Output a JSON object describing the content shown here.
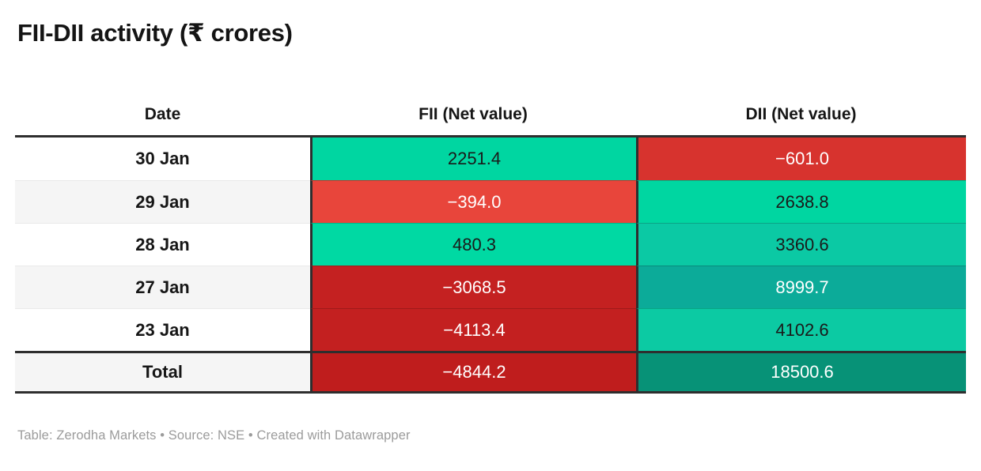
{
  "title": "FII-DII activity (₹ crores)",
  "footer_text": "Table: Zerodha Markets • Source: NSE • Created with Datawrapper",
  "colors": {
    "positive_green_bright": "#00d6a1",
    "positive_green_mid": "#0bc9a4",
    "positive_green_deep": "#0cab99",
    "positive_green_darkest": "#079277",
    "negative_red_light": "#e8453b",
    "negative_red_mid": "#d7332e",
    "negative_red_dark": "#c32020",
    "negative_red_darkest": "#bf1d1d",
    "header_border": "#2e2e2e",
    "stripe_gray": "#f5f5f5",
    "footer_gray": "#9b9b9b"
  },
  "table": {
    "columns": {
      "date": "Date",
      "fii": "FII (Net value)",
      "dii": "DII (Net value)"
    },
    "rows": [
      {
        "date": "30 Jan",
        "fii": {
          "value": "2251.4",
          "bg": "#00d6a1",
          "fg": "#1a1a1a"
        },
        "dii": {
          "value": "−601.0",
          "bg": "#d7332e",
          "fg": "#ffffff"
        }
      },
      {
        "date": "29 Jan",
        "fii": {
          "value": "−394.0",
          "bg": "#e8453b",
          "fg": "#ffffff"
        },
        "dii": {
          "value": "2638.8",
          "bg": "#00d6a1",
          "fg": "#1a1a1a"
        }
      },
      {
        "date": "28 Jan",
        "fii": {
          "value": "480.3",
          "bg": "#00d9a3",
          "fg": "#1a1a1a"
        },
        "dii": {
          "value": "3360.6",
          "bg": "#0bc9a4",
          "fg": "#1a1a1a"
        }
      },
      {
        "date": "27 Jan",
        "fii": {
          "value": "−3068.5",
          "bg": "#c42121",
          "fg": "#ffffff"
        },
        "dii": {
          "value": "8999.7",
          "bg": "#0cab99",
          "fg": "#ffffff"
        }
      },
      {
        "date": "23 Jan",
        "fii": {
          "value": "−4113.4",
          "bg": "#c32020",
          "fg": "#ffffff"
        },
        "dii": {
          "value": "4102.6",
          "bg": "#0ccaa3",
          "fg": "#1a1a1a"
        }
      }
    ],
    "total": {
      "label": "Total",
      "fii": {
        "value": "−4844.2",
        "bg": "#bf1d1d",
        "fg": "#ffffff"
      },
      "dii": {
        "value": "18500.6",
        "bg": "#079277",
        "fg": "#ffffff"
      }
    }
  },
  "chart_data": {
    "type": "table",
    "title": "FII-DII activity (₹ crores)",
    "columns": [
      "Date",
      "FII (Net value)",
      "DII (Net value)"
    ],
    "rows": [
      [
        "30 Jan",
        2251.4,
        -601.0
      ],
      [
        "29 Jan",
        -394.0,
        2638.8
      ],
      [
        "28 Jan",
        480.3,
        3360.6
      ],
      [
        "27 Jan",
        -3068.5,
        8999.7
      ],
      [
        "23 Jan",
        -4113.4,
        4102.6
      ],
      [
        "Total",
        -4844.2,
        18500.6
      ]
    ],
    "legend_position": "none",
    "style_note": "heatmap cells: green shades for positive values, red shades for negative values; darker shade = larger magnitude"
  }
}
